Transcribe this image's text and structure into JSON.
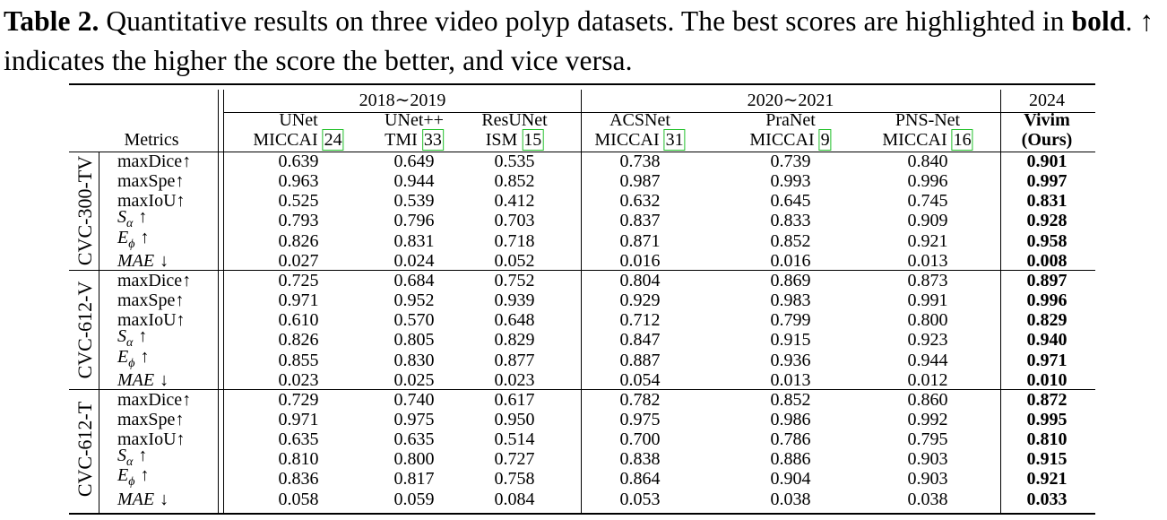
{
  "caption": {
    "label": "Table 2.",
    "text_before_bold": " Quantitative results on three video polyp datasets. The best scores are highlighted in ",
    "bold_word": "bold",
    "text_after_bold": ". ↑ indicates the higher the score the better, and vice versa."
  },
  "table": {
    "metrics_header": "Metrics",
    "year_groups": [
      "2018∼2019",
      "2020∼2021",
      "2024"
    ],
    "methods": [
      {
        "name": "UNet",
        "venue": "MICCAI",
        "ref": "24"
      },
      {
        "name": "UNet++",
        "venue": "TMI",
        "ref": "33"
      },
      {
        "name": "ResUNet",
        "venue": "ISM",
        "ref": "15"
      },
      {
        "name": "ACSNet",
        "venue": "MICCAI",
        "ref": "31"
      },
      {
        "name": "PraNet",
        "venue": "MICCAI",
        "ref": "9"
      },
      {
        "name": "PNS-Net",
        "venue": "MICCAI",
        "ref": "16"
      },
      {
        "name": "Vivim",
        "venue": "(Ours)",
        "ref": ""
      }
    ],
    "metrics": [
      {
        "main": "maxDice",
        "sub": "",
        "arrow": "↑"
      },
      {
        "main": "maxSpe",
        "sub": "",
        "arrow": "↑"
      },
      {
        "main": "maxIoU",
        "sub": "",
        "arrow": "↑"
      },
      {
        "main": "S",
        "sub": "α",
        "arrow": "↑"
      },
      {
        "main": "E",
        "sub": "ϕ",
        "arrow": "↑"
      },
      {
        "main": "MAE",
        "sub": "",
        "arrow": "↓"
      }
    ],
    "datasets": [
      {
        "name": "CVC-300-TV",
        "rows": [
          [
            "0.639",
            "0.649",
            "0.535",
            "0.738",
            "0.739",
            "0.840",
            "0.901"
          ],
          [
            "0.963",
            "0.944",
            "0.852",
            "0.987",
            "0.993",
            "0.996",
            "0.997"
          ],
          [
            "0.525",
            "0.539",
            "0.412",
            "0.632",
            "0.645",
            "0.745",
            "0.831"
          ],
          [
            "0.793",
            "0.796",
            "0.703",
            "0.837",
            "0.833",
            "0.909",
            "0.928"
          ],
          [
            "0.826",
            "0.831",
            "0.718",
            "0.871",
            "0.852",
            "0.921",
            "0.958"
          ],
          [
            "0.027",
            "0.024",
            "0.052",
            "0.016",
            "0.016",
            "0.013",
            "0.008"
          ]
        ]
      },
      {
        "name": "CVC-612-V",
        "rows": [
          [
            "0.725",
            "0.684",
            "0.752",
            "0.804",
            "0.869",
            "0.873",
            "0.897"
          ],
          [
            "0.971",
            "0.952",
            "0.939",
            "0.929",
            "0.983",
            "0.991",
            "0.996"
          ],
          [
            "0.610",
            "0.570",
            "0.648",
            "0.712",
            "0.799",
            "0.800",
            "0.829"
          ],
          [
            "0.826",
            "0.805",
            "0.829",
            "0.847",
            "0.915",
            "0.923",
            "0.940"
          ],
          [
            "0.855",
            "0.830",
            "0.877",
            "0.887",
            "0.936",
            "0.944",
            "0.971"
          ],
          [
            "0.023",
            "0.025",
            "0.023",
            "0.054",
            "0.013",
            "0.012",
            "0.010"
          ]
        ]
      },
      {
        "name": "CVC-612-T",
        "rows": [
          [
            "0.729",
            "0.740",
            "0.617",
            "0.782",
            "0.852",
            "0.860",
            "0.872"
          ],
          [
            "0.971",
            "0.975",
            "0.950",
            "0.975",
            "0.986",
            "0.992",
            "0.995"
          ],
          [
            "0.635",
            "0.635",
            "0.514",
            "0.700",
            "0.786",
            "0.795",
            "0.810"
          ],
          [
            "0.810",
            "0.800",
            "0.727",
            "0.838",
            "0.886",
            "0.903",
            "0.915"
          ],
          [
            "0.836",
            "0.817",
            "0.758",
            "0.864",
            "0.904",
            "0.903",
            "0.921"
          ],
          [
            "0.058",
            "0.059",
            "0.084",
            "0.053",
            "0.038",
            "0.038",
            "0.033"
          ]
        ]
      }
    ],
    "colors": {
      "text": "#000000",
      "citation_box": "#22c02a",
      "background": "#ffffff"
    }
  }
}
